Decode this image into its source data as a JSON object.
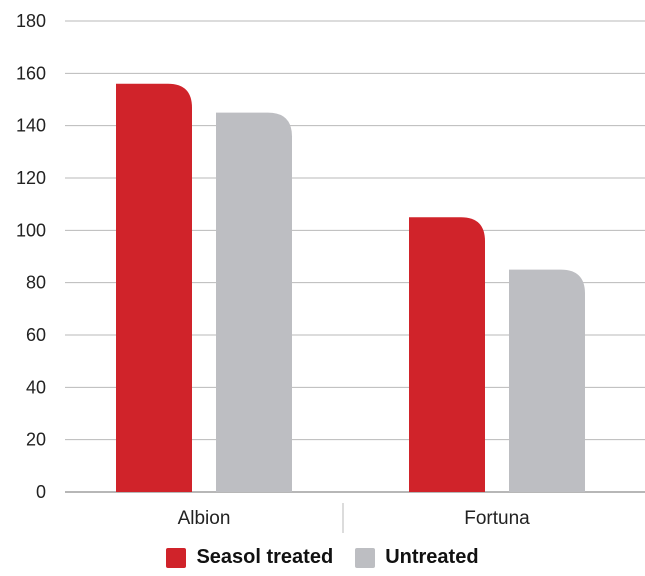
{
  "chart_data": {
    "type": "bar",
    "title": "",
    "xlabel": "",
    "ylabel": "",
    "categories": [
      "Albion",
      "Fortuna"
    ],
    "series": [
      {
        "name": "Seasol treated",
        "values": [
          156,
          105
        ],
        "color": "#d0232a"
      },
      {
        "name": "Untreated",
        "values": [
          145,
          85
        ],
        "color": "#bdbec2"
      }
    ],
    "ylim": [
      0,
      180
    ],
    "yticks": [
      0,
      20,
      40,
      60,
      80,
      100,
      120,
      140,
      160,
      180
    ],
    "grid": true,
    "legend_position": "bottom"
  }
}
